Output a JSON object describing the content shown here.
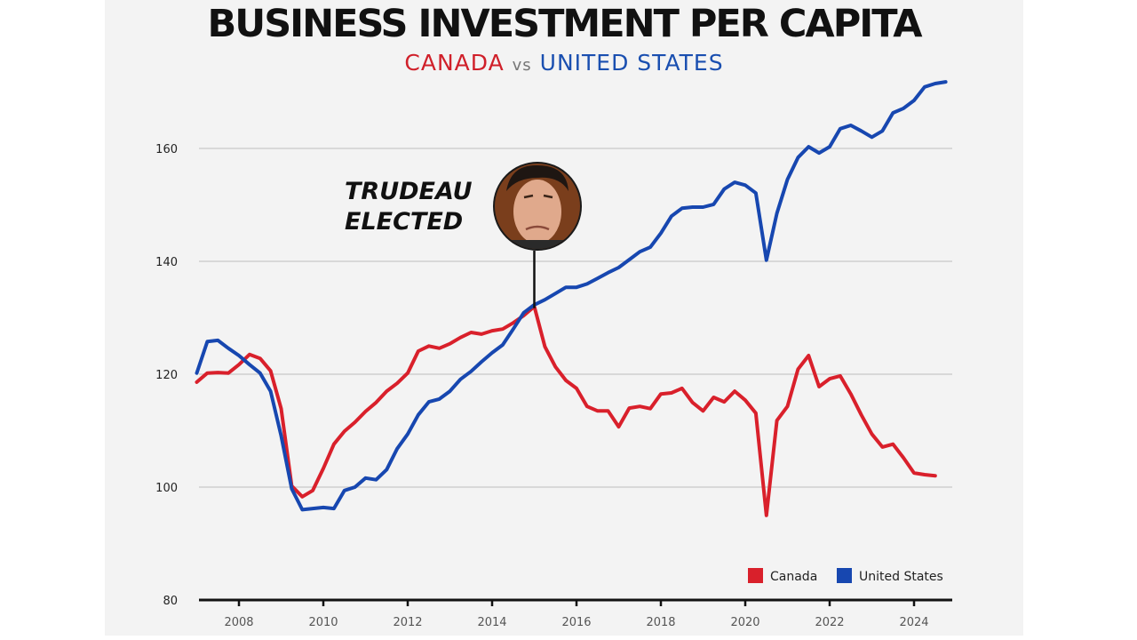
{
  "chart_data": {
    "type": "line",
    "title": "BUSINESS INVESTMENT PER CAPITA",
    "subtitle": {
      "part1": "CANADA",
      "part2": "vs",
      "part3": "UNITED STATES"
    },
    "xlabel": "",
    "ylabel": "",
    "xlim": [
      2007,
      2025
    ],
    "ylim": [
      80,
      175
    ],
    "xticks": [
      2008,
      2010,
      2012,
      2014,
      2016,
      2018,
      2020,
      2022,
      2024
    ],
    "yticks": [
      80,
      100,
      120,
      140,
      160
    ],
    "grid": "horizontal",
    "legend_position": "bottom-right",
    "annotation": {
      "line1": "TRUDEAU",
      "line2": "ELECTED",
      "x": 2015
    },
    "series": [
      {
        "name": "Canada",
        "color": "#d9202b",
        "x": [
          2007,
          2007.25,
          2007.5,
          2007.75,
          2008,
          2008.25,
          2008.5,
          2008.75,
          2009,
          2009.25,
          2009.5,
          2009.75,
          2010,
          2010.25,
          2010.5,
          2010.75,
          2011,
          2011.25,
          2011.5,
          2011.75,
          2012,
          2012.25,
          2012.5,
          2012.75,
          2013,
          2013.25,
          2013.5,
          2013.75,
          2014,
          2014.25,
          2014.5,
          2014.75,
          2015,
          2015.25,
          2015.5,
          2015.75,
          2016,
          2016.25,
          2016.5,
          2016.75,
          2017,
          2017.25,
          2017.5,
          2017.75,
          2018,
          2018.25,
          2018.5,
          2018.75,
          2019,
          2019.25,
          2019.5,
          2019.75,
          2020,
          2020.25,
          2020.5,
          2020.75,
          2021,
          2021.25,
          2021.5,
          2021.75,
          2022,
          2022.25,
          2022.5,
          2022.75,
          2023,
          2023.25,
          2023.5,
          2023.75,
          2024,
          2024.25,
          2024.5
        ],
        "values": [
          118.6,
          120.2,
          120.3,
          120.2,
          121.7,
          123.5,
          122.8,
          120.6,
          113.9,
          100.2,
          98.3,
          99.4,
          103.3,
          107.6,
          109.9,
          111.5,
          113.4,
          115.0,
          117.0,
          118.4,
          120.2,
          124.1,
          125.0,
          124.6,
          125.4,
          126.5,
          127.4,
          127.1,
          127.7,
          128.0,
          129.1,
          130.4,
          132.0,
          124.9,
          121.3,
          118.9,
          117.5,
          114.3,
          113.5,
          113.5,
          110.7,
          114.0,
          114.3,
          113.9,
          116.5,
          116.7,
          117.5,
          115.0,
          113.5,
          115.9,
          115.1,
          117.0,
          115.4,
          113.1,
          95.0,
          111.8,
          114.3,
          120.9,
          123.3,
          117.8,
          119.2,
          119.7,
          116.5,
          112.8,
          109.4,
          107.1,
          107.6,
          105.2,
          102.5,
          102.2,
          102.0
        ]
      },
      {
        "name": "United States",
        "color": "#1747b0",
        "x": [
          2007,
          2007.25,
          2007.5,
          2007.75,
          2008,
          2008.25,
          2008.5,
          2008.75,
          2009,
          2009.25,
          2009.5,
          2009.75,
          2010,
          2010.25,
          2010.5,
          2010.75,
          2011,
          2011.25,
          2011.5,
          2011.75,
          2012,
          2012.25,
          2012.5,
          2012.75,
          2013,
          2013.25,
          2013.5,
          2013.75,
          2014,
          2014.25,
          2014.5,
          2014.75,
          2015,
          2015.25,
          2015.5,
          2015.75,
          2016,
          2016.25,
          2016.5,
          2016.75,
          2017,
          2017.25,
          2017.5,
          2017.75,
          2018,
          2018.25,
          2018.5,
          2018.75,
          2019,
          2019.25,
          2019.5,
          2019.75,
          2020,
          2020.25,
          2020.5,
          2020.75,
          2021,
          2021.25,
          2021.5,
          2021.75,
          2022,
          2022.25,
          2022.5,
          2022.75,
          2023,
          2023.25,
          2023.5,
          2023.75,
          2024,
          2024.25,
          2024.5,
          2024.75
        ],
        "values": [
          120.2,
          125.8,
          126.0,
          124.6,
          123.3,
          121.7,
          120.2,
          117.0,
          109.1,
          99.7,
          96.0,
          96.2,
          96.4,
          96.2,
          99.4,
          100.0,
          101.6,
          101.3,
          103.1,
          106.8,
          109.4,
          112.8,
          115.1,
          115.6,
          117.0,
          119.1,
          120.5,
          122.2,
          123.8,
          125.2,
          128.0,
          130.9,
          132.3,
          133.2,
          134.3,
          135.4,
          135.4,
          136.0,
          137.0,
          138.0,
          138.9,
          140.3,
          141.7,
          142.5,
          145.0,
          148.0,
          149.4,
          149.6,
          149.6,
          150.1,
          152.8,
          154.0,
          153.5,
          152.1,
          140.2,
          148.5,
          154.5,
          158.4,
          160.3,
          159.2,
          160.3,
          163.5,
          164.1,
          163.1,
          162.0,
          163.1,
          166.3,
          167.1,
          168.5,
          170.9,
          171.5,
          171.8
        ]
      }
    ]
  }
}
